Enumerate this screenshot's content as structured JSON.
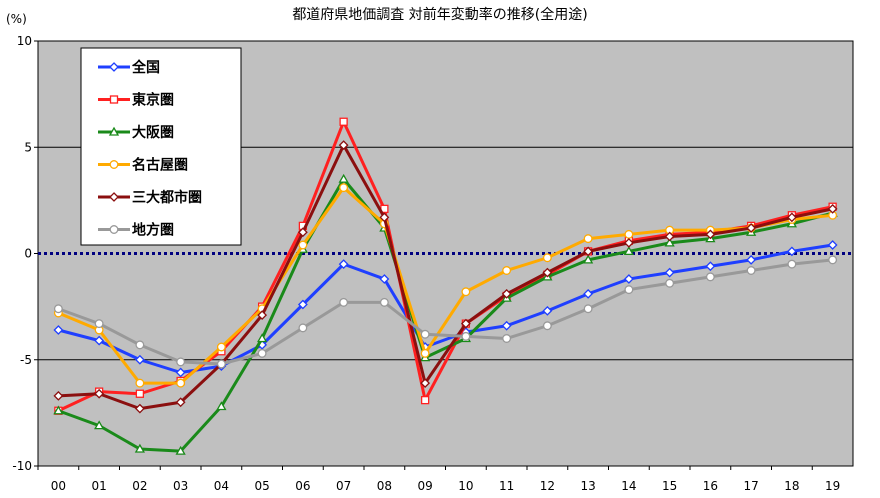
{
  "chart_data": {
    "type": "line",
    "title": "都道府県地価調査 対前年変動率の推移(全用途)",
    "ylabel": "(%)",
    "xlabel": "",
    "ylim": [
      -10,
      10
    ],
    "yticks": [
      10,
      5,
      0,
      -5,
      -10
    ],
    "categories": [
      "00",
      "01",
      "02",
      "03",
      "04",
      "05",
      "06",
      "07",
      "08",
      "09",
      "10",
      "11",
      "12",
      "13",
      "14",
      "15",
      "16",
      "17",
      "18",
      "19"
    ],
    "grid": true,
    "legend": "top-left",
    "series": [
      {
        "name": "全国",
        "color": "#1f3fff",
        "marker": "diamond",
        "values": [
          -3.6,
          -4.1,
          -5.0,
          -5.6,
          -5.3,
          -4.3,
          -2.4,
          -0.5,
          -1.2,
          -4.4,
          -3.7,
          -3.4,
          -2.7,
          -1.9,
          -1.2,
          -0.9,
          -0.6,
          -0.3,
          0.1,
          0.4
        ]
      },
      {
        "name": "東京圏",
        "color": "#ff2020",
        "marker": "square",
        "values": [
          -7.4,
          -6.5,
          -6.6,
          -6.0,
          -4.6,
          -2.5,
          1.3,
          6.2,
          2.1,
          -6.9,
          -3.3,
          -2.0,
          -1.0,
          0.1,
          0.6,
          0.9,
          1.0,
          1.3,
          1.8,
          2.2
        ]
      },
      {
        "name": "大阪圏",
        "color": "#1a8a1a",
        "marker": "triangle",
        "values": [
          -7.4,
          -8.1,
          -9.2,
          -9.3,
          -7.2,
          -4.0,
          0.2,
          3.5,
          1.2,
          -4.9,
          -4.0,
          -2.1,
          -1.1,
          -0.3,
          0.1,
          0.5,
          0.7,
          1.0,
          1.4,
          1.9
        ]
      },
      {
        "name": "名古屋圏",
        "color": "#ffaa00",
        "marker": "circle",
        "values": [
          -2.8,
          -3.6,
          -6.1,
          -6.1,
          -4.4,
          -2.6,
          0.4,
          3.1,
          1.4,
          -4.7,
          -1.8,
          -0.8,
          -0.2,
          0.7,
          0.9,
          1.1,
          1.1,
          1.2,
          1.6,
          1.8
        ]
      },
      {
        "name": "三大都市圏",
        "color": "#8b0f0f",
        "marker": "diamond",
        "values": [
          -6.7,
          -6.6,
          -7.3,
          -7.0,
          -5.2,
          -2.9,
          1.0,
          5.1,
          1.7,
          -6.1,
          -3.3,
          -1.9,
          -0.9,
          0.1,
          0.5,
          0.8,
          0.9,
          1.2,
          1.7,
          2.1
        ]
      },
      {
        "name": "地方圏",
        "color": "#999999",
        "marker": "circle-open",
        "values": [
          -2.6,
          -3.3,
          -4.3,
          -5.1,
          -5.2,
          -4.7,
          -3.5,
          -2.3,
          -2.3,
          -3.8,
          -3.9,
          -4.0,
          -3.4,
          -2.6,
          -1.7,
          -1.4,
          -1.1,
          -0.8,
          -0.5,
          -0.3
        ]
      }
    ]
  }
}
